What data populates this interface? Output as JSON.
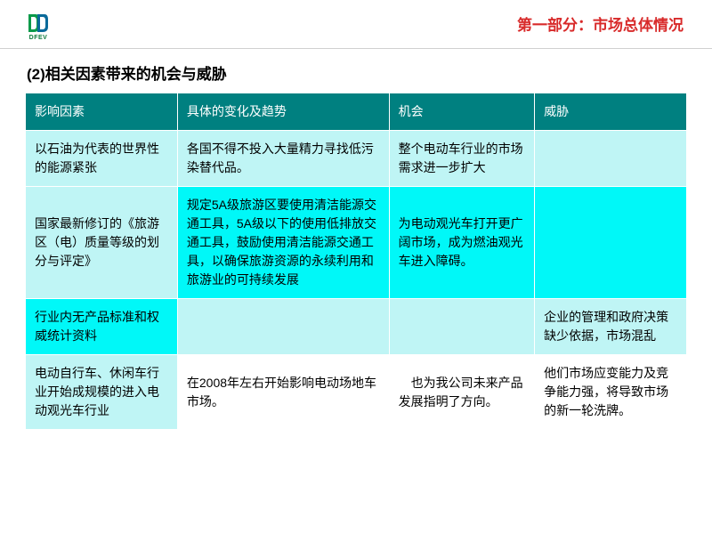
{
  "header": {
    "logo_text": "DFEV",
    "logo_colors": {
      "left": "#0a9a4a",
      "right": "#0a6a9a"
    },
    "section_label": "第一部分：市场总体情况",
    "section_label_color": "#d82a2a"
  },
  "subtitle": "(2)相关因素带来的机会与威胁",
  "table": {
    "header_bg": "#008080",
    "header_text_color": "#ffffff",
    "body_bg_alt1": "#bff5f5",
    "body_bg_alt2": "#00f8f8",
    "border_color": "#ffffff",
    "col_widths": [
      "23%",
      "32%",
      "22%",
      "23%"
    ],
    "columns": [
      "影响因素",
      "具体的变化及趋势",
      "机会",
      "威胁"
    ],
    "rows": [
      {
        "bg": "#bff5f5",
        "cells": [
          "以石油为代表的世界性的能源紧张",
          "各国不得不投入大量精力寻找低污染替代品。",
          "整个电动车行业的市场需求进一步扩大",
          ""
        ]
      },
      {
        "bg": "#00f8f8",
        "cells": [
          "国家最新修订的《旅游区（电）质量等级的划分与评定》",
          "规定5A级旅游区要使用清洁能源交通工具，5A级以下的使用低排放交通工具，鼓励使用清洁能源交通工具，以确保旅游资源的永续利用和旅游业的可持续发展",
          "为电动观光车打开更广阔市场，成为燃油观光车进入障碍。",
          ""
        ],
        "cell0_bg": "#bff5f5"
      },
      {
        "bg": "#bff5f5",
        "cells": [
          "行业内无产品标准和权威统计资料",
          "",
          "",
          "企业的管理和政府决策缺少依据，市场混乱"
        ],
        "cell0_bg": "#00f8f8"
      },
      {
        "bg": "#ffffff",
        "cells": [
          "电动自行车、休闲车行业开始成规模的进入电动观光车行业",
          "在2008年左右开始影响电动场地车市场。",
          "　也为我公司未来产品发展指明了方向。",
          "他们市场应变能力及竞争能力强，将导致市场的新一轮洗牌。"
        ],
        "cell0_bg": "#bff5f5"
      }
    ]
  }
}
